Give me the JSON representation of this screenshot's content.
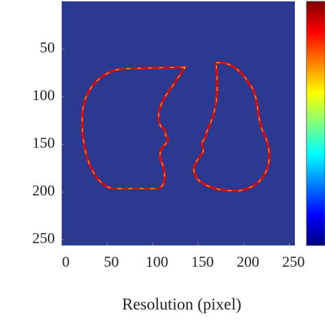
{
  "chart_data": {
    "type": "heatmap",
    "xlabel": "Resolution (pixel)",
    "xlim": [
      0,
      256
    ],
    "ylim": [
      0,
      256
    ],
    "y_reversed": true,
    "xticks": [
      0,
      50,
      100,
      150,
      200,
      250
    ],
    "yticks": [
      50,
      100,
      150,
      200,
      250
    ],
    "background": "#2b3990",
    "colormap": "jet",
    "colorbar": true
  }
}
